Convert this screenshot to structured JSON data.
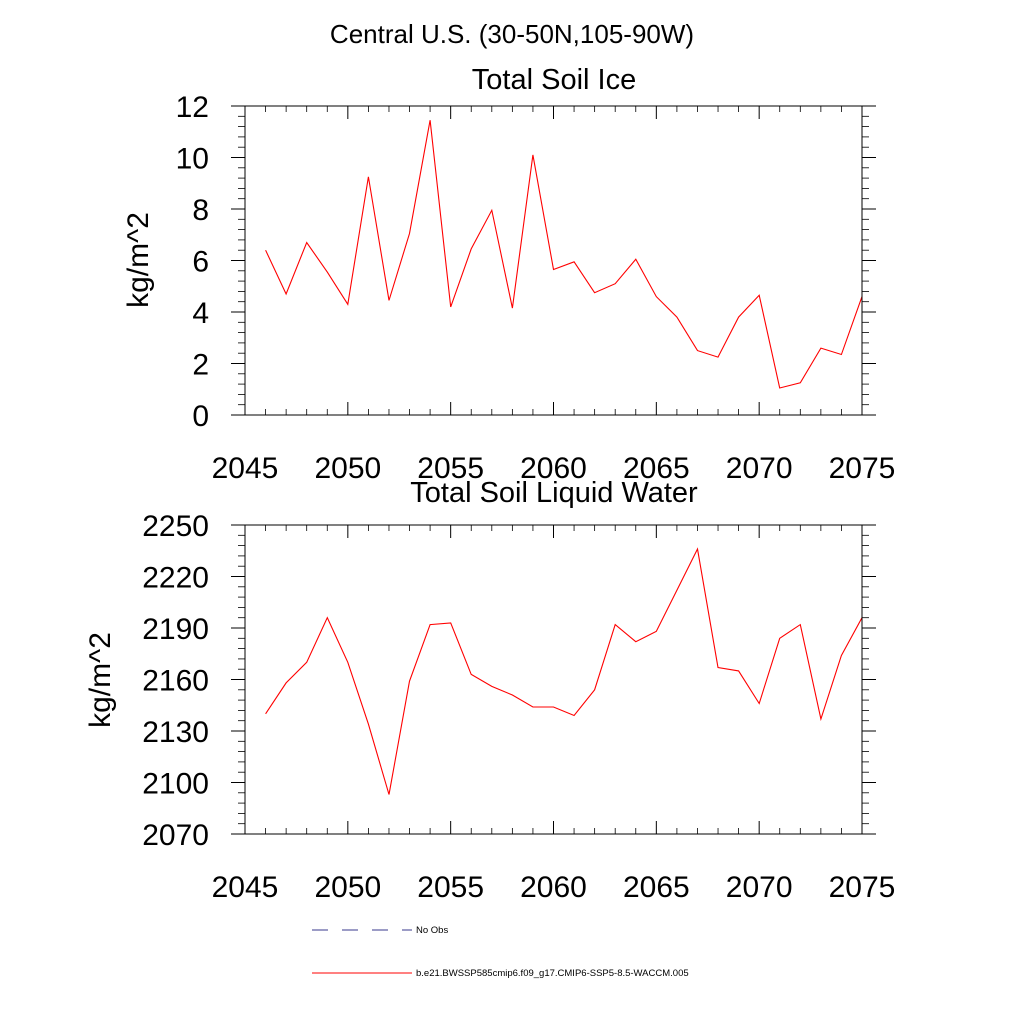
{
  "figure_title": "Central U.S. (30-50N,105-90W)",
  "colors": {
    "series": "#ff0000",
    "obs": "#3a3a8c",
    "axis": "#000000"
  },
  "legend": {
    "items": [
      {
        "label": "No Obs",
        "style": "dashed",
        "color": "#3a3a8c"
      },
      {
        "label": "b.e21.BWSSP585cmip6.f09_g17.CMIP6-SSP5-8.5-WACCM.005",
        "style": "solid",
        "color": "#ff0000"
      }
    ]
  },
  "chart_data": [
    {
      "type": "line",
      "title": "Total Soil Ice",
      "xlabel": "",
      "ylabel": "kg/m^2",
      "xlim": [
        2045,
        2075
      ],
      "ylim": [
        0,
        12
      ],
      "xticks": [
        "2045",
        "2050",
        "2055",
        "2060",
        "2065",
        "2070",
        "2075"
      ],
      "yticks": [
        "0",
        "2",
        "4",
        "6",
        "8",
        "10",
        "12"
      ],
      "grid": false,
      "series": [
        {
          "color": "#ff0000",
          "x": [
            2046,
            2047,
            2048,
            2049,
            2050,
            2051,
            2052,
            2053,
            2054,
            2055,
            2056,
            2057,
            2058,
            2059,
            2060,
            2061,
            2062,
            2063,
            2064,
            2065,
            2066,
            2067,
            2068,
            2069,
            2070,
            2071,
            2072,
            2073,
            2074,
            2075
          ],
          "values": [
            6.4,
            4.7,
            6.7,
            5.55,
            4.3,
            9.25,
            4.45,
            7.05,
            11.45,
            4.2,
            6.45,
            7.95,
            4.15,
            10.1,
            5.65,
            5.95,
            4.75,
            5.1,
            6.05,
            4.6,
            3.8,
            2.5,
            2.25,
            3.8,
            4.65,
            1.05,
            1.25,
            2.6,
            2.35,
            4.6
          ]
        }
      ]
    },
    {
      "type": "line",
      "title": "Total Soil Liquid Water",
      "xlabel": "",
      "ylabel": "kg/m^2",
      "xlim": [
        2045,
        2075
      ],
      "ylim": [
        2070,
        2250
      ],
      "xticks": [
        "2045",
        "2050",
        "2055",
        "2060",
        "2065",
        "2070",
        "2075"
      ],
      "yticks": [
        "2070",
        "2100",
        "2130",
        "2160",
        "2190",
        "2220",
        "2250"
      ],
      "grid": false,
      "series": [
        {
          "color": "#ff0000",
          "x": [
            2046,
            2047,
            2048,
            2049,
            2050,
            2051,
            2052,
            2053,
            2054,
            2055,
            2056,
            2057,
            2058,
            2059,
            2060,
            2061,
            2062,
            2063,
            2064,
            2065,
            2066,
            2067,
            2068,
            2069,
            2070,
            2071,
            2072,
            2073,
            2074,
            2075
          ],
          "values": [
            2140,
            2158,
            2170,
            2196,
            2170,
            2134,
            2093,
            2159,
            2192,
            2193,
            2163,
            2156,
            2151,
            2144,
            2144,
            2139,
            2154,
            2192,
            2182,
            2188,
            2212,
            2236,
            2167,
            2165,
            2146,
            2184,
            2192,
            2137,
            2174,
            2196
          ]
        }
      ]
    }
  ]
}
